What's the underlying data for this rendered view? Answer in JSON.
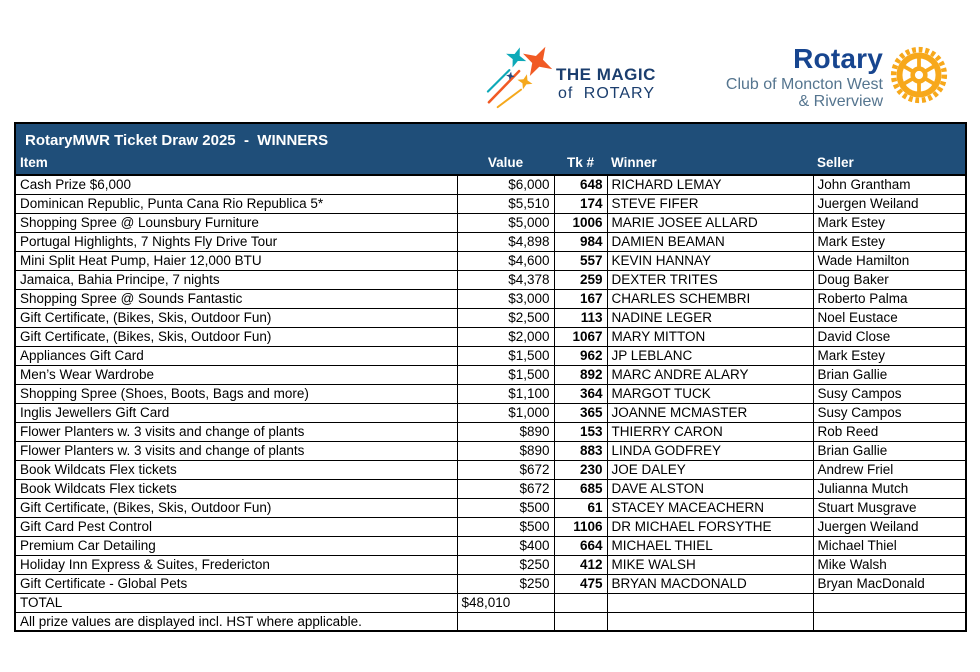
{
  "header": {
    "magic_logo": {
      "line1": "THE MAGIC",
      "line2": "of ROTARY"
    },
    "rotary_logo": {
      "wordmark": "Rotary",
      "club_line1": "Club of Moncton West",
      "club_line2": "& Riverview"
    }
  },
  "colors": {
    "table_header_blue": "#1f4e79",
    "rotary_gold": "#f7a81b",
    "rotary_blue": "#17458f",
    "club_text_blue": "#55758f",
    "magic_navy": "#1b3e6e",
    "star_orange": "#f15a24",
    "star_teal": "#0da9b8",
    "star_gold": "#f5a81c"
  },
  "table": {
    "title": "RotaryMWR Ticket Draw 2025  -  WINNERS",
    "columns": [
      "Item",
      "Value",
      "Tk #",
      "Winner",
      "Seller"
    ],
    "rows": [
      {
        "item": "Cash Prize $6,000",
        "value": "$6,000",
        "tk": "648",
        "winner": "RICHARD LEMAY",
        "seller": "John Grantham"
      },
      {
        "item": "Dominican Republic, Punta Cana Rio Republica 5*",
        "value": "$5,510",
        "tk": "174",
        "winner": "STEVE FIFER",
        "seller": "Juergen Weiland"
      },
      {
        "item": "Shopping Spree @ Lounsbury Furniture",
        "value": "$5,000",
        "tk": "1006",
        "winner": "MARIE JOSEE ALLARD",
        "seller": "Mark Estey"
      },
      {
        "item": "Portugal Highlights, 7 Nights Fly Drive Tour",
        "value": "$4,898",
        "tk": "984",
        "winner": "DAMIEN BEAMAN",
        "seller": "Mark Estey"
      },
      {
        "item": "Mini Split Heat Pump, Haier 12,000 BTU",
        "value": "$4,600",
        "tk": "557",
        "winner": "KEVIN HANNAY",
        "seller": "Wade Hamilton"
      },
      {
        "item": "Jamaica, Bahia Principe, 7 nights",
        "value": "$4,378",
        "tk": "259",
        "winner": "DEXTER TRITES",
        "seller": "Doug Baker"
      },
      {
        "item": "Shopping Spree @ Sounds Fantastic",
        "value": "$3,000",
        "tk": "167",
        "winner": "CHARLES SCHEMBRI",
        "seller": "Roberto Palma"
      },
      {
        "item": "Gift Certificate, (Bikes, Skis, Outdoor Fun)",
        "value": "$2,500",
        "tk": "113",
        "winner": "NADINE LEGER",
        "seller": "Noel Eustace"
      },
      {
        "item": "Gift Certificate, (Bikes, Skis, Outdoor Fun)",
        "value": "$2,000",
        "tk": "1067",
        "winner": "MARY MITTON",
        "seller": "David Close"
      },
      {
        "item": "Appliances Gift Card",
        "value": "$1,500",
        "tk": "962",
        "winner": "JP LEBLANC",
        "seller": "Mark Estey"
      },
      {
        "item": "Men’s Wear Wardrobe",
        "value": "$1,500",
        "tk": "892",
        "winner": "MARC ANDRE ALARY",
        "seller": "Brian Gallie"
      },
      {
        "item": "Shopping Spree (Shoes, Boots, Bags and more)",
        "value": "$1,100",
        "tk": "364",
        "winner": "MARGOT TUCK",
        "seller": "Susy Campos"
      },
      {
        "item": "Inglis Jewellers Gift Card",
        "value": "$1,000",
        "tk": "365",
        "winner": "JOANNE MCMASTER",
        "seller": "Susy Campos"
      },
      {
        "item": "Flower Planters w. 3 visits and change of plants",
        "value": "$890",
        "tk": "153",
        "winner": "THIERRY CARON",
        "seller": "Rob Reed"
      },
      {
        "item": "Flower Planters w. 3 visits and change of plants",
        "value": "$890",
        "tk": "883",
        "winner": "LINDA GODFREY",
        "seller": "Brian Gallie"
      },
      {
        "item": "Book Wildcats Flex tickets",
        "value": "$672",
        "tk": "230",
        "winner": "JOE DALEY",
        "seller": "Andrew Friel"
      },
      {
        "item": "Book Wildcats Flex tickets",
        "value": "$672",
        "tk": "685",
        "winner": "DAVE ALSTON",
        "seller": "Julianna Mutch"
      },
      {
        "item": "Gift Certificate, (Bikes, Skis, Outdoor Fun)",
        "value": "$500",
        "tk": "61",
        "winner": "STACEY MACEACHERN",
        "seller": "Stuart Musgrave"
      },
      {
        "item": "Gift Card Pest Control",
        "value": "$500",
        "tk": "1106",
        "winner": "DR MICHAEL FORSYTHE",
        "seller": "Juergen Weiland"
      },
      {
        "item": "Premium Car Detailing",
        "value": "$400",
        "tk": "664",
        "winner": "MICHAEL THIEL",
        "seller": "Michael Thiel"
      },
      {
        "item": "Holiday Inn Express & Suites, Fredericton",
        "value": "$250",
        "tk": "412",
        "winner": "MIKE WALSH",
        "seller": "Mike Walsh"
      },
      {
        "item": "Gift Certificate - Global Pets",
        "value": "$250",
        "tk": "475",
        "winner": "BRYAN MACDONALD",
        "seller": "Bryan MacDonald"
      }
    ],
    "total_row": {
      "label": "TOTAL",
      "value": "$48,010"
    },
    "footnote": "All prize values are displayed incl. HST where applicable."
  }
}
